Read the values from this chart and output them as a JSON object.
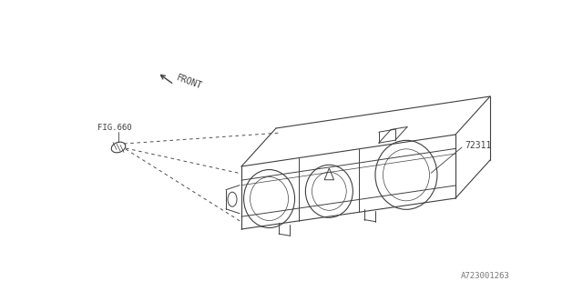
{
  "background_color": "#ffffff",
  "line_color": "#404040",
  "text_color": "#404040",
  "part_number": "72311",
  "fig_ref": "FIG.660",
  "front_label": "FRONT",
  "catalog_number": "A723001263",
  "lw": 0.8
}
